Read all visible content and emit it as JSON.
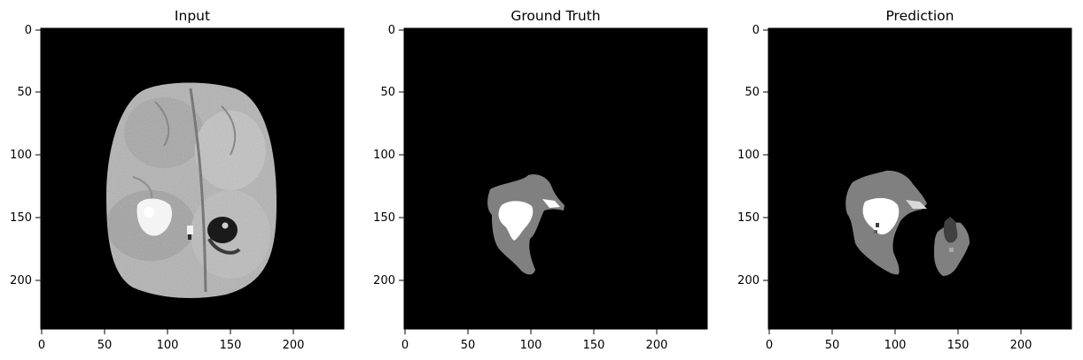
{
  "figure": {
    "panels": [
      {
        "title": "Input",
        "x_ticks": [
          "0",
          "50",
          "100",
          "150",
          "200"
        ],
        "y_ticks": [
          "0",
          "50",
          "100",
          "150",
          "200"
        ]
      },
      {
        "title": "Ground Truth",
        "x_ticks": [
          "0",
          "50",
          "100",
          "150",
          "200"
        ],
        "y_ticks": [
          "0",
          "50",
          "100",
          "150",
          "200"
        ]
      },
      {
        "title": "Prediction",
        "x_ticks": [
          "0",
          "50",
          "100",
          "150",
          "200"
        ],
        "y_ticks": [
          "0",
          "50",
          "100",
          "150",
          "200"
        ]
      }
    ],
    "colors": {
      "background": "#000000",
      "tissue_light": "#b7b7b7",
      "tissue_mid": "#8f8f8f",
      "label_gray": "#808080",
      "label_white": "#ffffff",
      "label_dark": "#404040"
    }
  }
}
